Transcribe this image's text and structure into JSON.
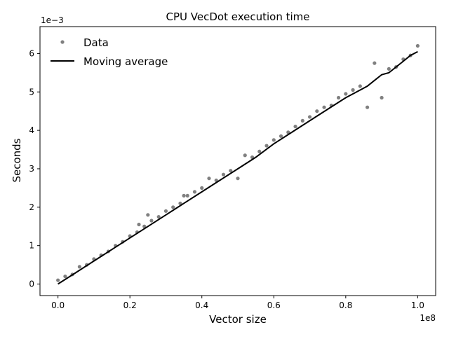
{
  "chart_data": {
    "type": "scatter",
    "title": "CPU VecDot execution time",
    "xlabel": "Vector size",
    "ylabel": "Seconds",
    "x_offset_label": "1e8",
    "y_offset_label": "1e−3",
    "xlim": [
      -0.05,
      1.05
    ],
    "ylim": [
      -0.3,
      6.7
    ],
    "x_ticks": [
      0.0,
      0.2,
      0.4,
      0.6,
      0.8,
      1.0
    ],
    "x_tick_labels": [
      "0.0",
      "0.2",
      "0.4",
      "0.6",
      "0.8",
      "1.0"
    ],
    "y_ticks": [
      0,
      1,
      2,
      3,
      4,
      5,
      6
    ],
    "y_tick_labels": [
      "0",
      "1",
      "2",
      "3",
      "4",
      "5",
      "6"
    ],
    "grid": false,
    "legend_position": "top-left",
    "series": [
      {
        "name": "Data",
        "style": "points",
        "color": "#808080",
        "x": [
          0.0,
          0.02,
          0.04,
          0.06,
          0.08,
          0.1,
          0.12,
          0.14,
          0.16,
          0.18,
          0.2,
          0.22,
          0.225,
          0.24,
          0.25,
          0.26,
          0.28,
          0.3,
          0.32,
          0.34,
          0.35,
          0.36,
          0.38,
          0.4,
          0.42,
          0.44,
          0.46,
          0.48,
          0.5,
          0.52,
          0.54,
          0.56,
          0.58,
          0.6,
          0.62,
          0.64,
          0.66,
          0.68,
          0.7,
          0.72,
          0.74,
          0.76,
          0.78,
          0.8,
          0.82,
          0.84,
          0.86,
          0.88,
          0.9,
          0.92,
          0.94,
          0.96,
          0.98,
          1.0
        ],
        "y": [
          0.1,
          0.2,
          0.25,
          0.45,
          0.5,
          0.65,
          0.75,
          0.85,
          1.0,
          1.1,
          1.25,
          1.35,
          1.55,
          1.5,
          1.8,
          1.65,
          1.75,
          1.9,
          2.0,
          2.1,
          2.3,
          2.3,
          2.4,
          2.5,
          2.75,
          2.7,
          2.85,
          2.95,
          2.75,
          3.35,
          3.3,
          3.45,
          3.6,
          3.75,
          3.85,
          3.95,
          4.1,
          4.25,
          4.35,
          4.5,
          4.6,
          4.65,
          4.85,
          4.95,
          5.05,
          5.15,
          4.6,
          5.75,
          4.85,
          5.6,
          5.65,
          5.85,
          5.95,
          6.2
        ]
      },
      {
        "name": "Moving average",
        "style": "line",
        "color": "#000000",
        "x": [
          0.0,
          0.05,
          0.1,
          0.15,
          0.2,
          0.25,
          0.3,
          0.35,
          0.4,
          0.45,
          0.5,
          0.55,
          0.6,
          0.65,
          0.7,
          0.75,
          0.8,
          0.85,
          0.86,
          0.88,
          0.9,
          0.92,
          0.94,
          0.96,
          0.98,
          1.0
        ],
        "y": [
          0.0,
          0.3,
          0.6,
          0.9,
          1.2,
          1.5,
          1.8,
          2.1,
          2.4,
          2.7,
          3.0,
          3.3,
          3.65,
          3.95,
          4.25,
          4.55,
          4.85,
          5.1,
          5.15,
          5.3,
          5.45,
          5.5,
          5.65,
          5.8,
          5.95,
          6.05
        ]
      }
    ]
  }
}
